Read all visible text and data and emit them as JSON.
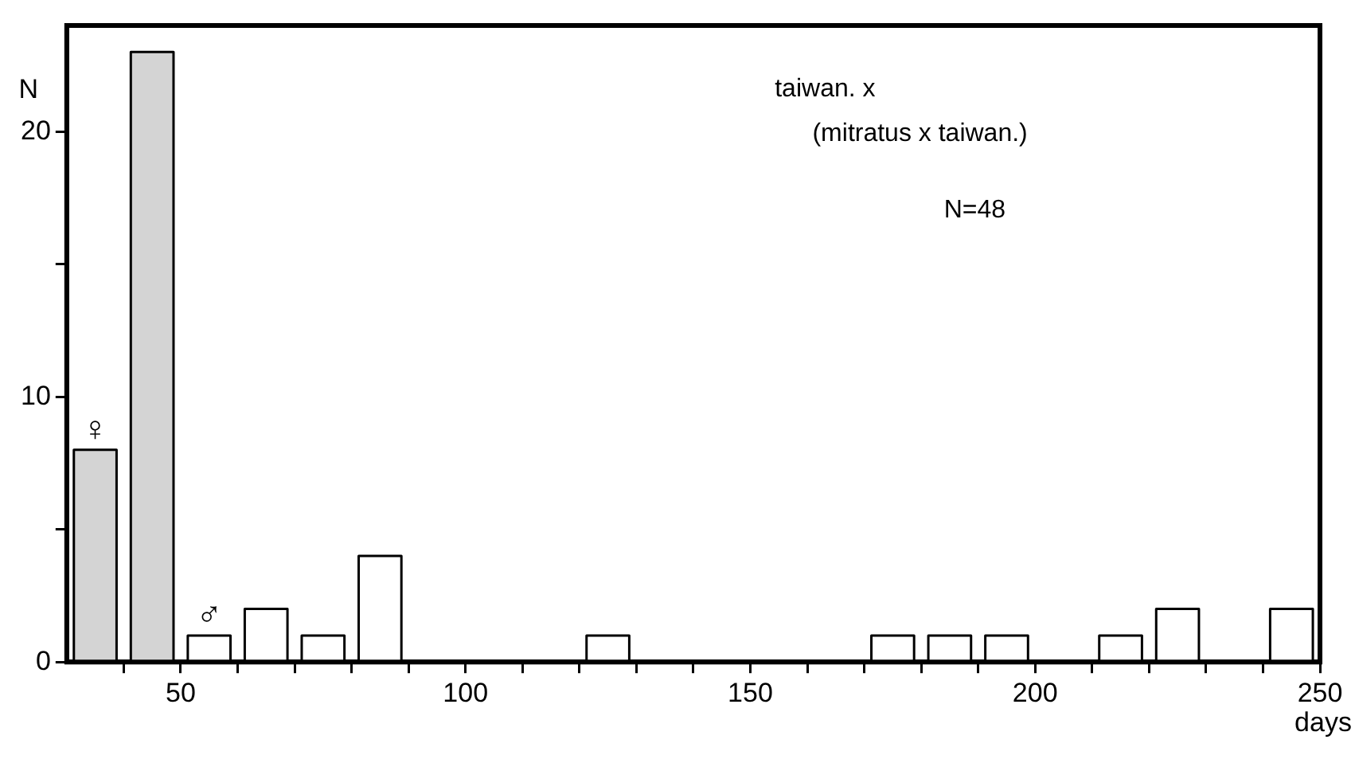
{
  "chart_data": {
    "type": "histogram",
    "xlabel": "days",
    "ylabel": "N",
    "bins": [
      30,
      40,
      50,
      60,
      70,
      80,
      90,
      100,
      110,
      120,
      130,
      140,
      150,
      160,
      170,
      180,
      190,
      200,
      210,
      220,
      230,
      240,
      250
    ],
    "values": [
      8,
      23,
      1,
      2,
      1,
      4,
      0,
      0,
      0,
      1,
      0,
      0,
      0,
      0,
      1,
      1,
      1,
      0,
      1,
      2,
      0,
      2
    ],
    "colors": [
      "#d4d4d4",
      "#d4d4d4",
      "#ffffff",
      "#ffffff",
      "#ffffff",
      "#ffffff",
      "#ffffff",
      "#ffffff",
      "#ffffff",
      "#ffffff",
      "#ffffff",
      "#ffffff",
      "#ffffff",
      "#ffffff",
      "#ffffff",
      "#ffffff",
      "#ffffff",
      "#ffffff",
      "#ffffff",
      "#ffffff",
      "#ffffff",
      "#ffffff"
    ],
    "xlim": [
      30,
      250
    ],
    "xticks": [
      {
        "value": 40,
        "label": null
      },
      50,
      {
        "value": 60,
        "label": null
      },
      {
        "value": 70,
        "label": null
      },
      {
        "value": 80,
        "label": null
      },
      {
        "value": 90,
        "label": null
      },
      100,
      {
        "value": 110,
        "label": null
      },
      {
        "value": 120,
        "label": null
      },
      {
        "value": 130,
        "label": null
      },
      {
        "value": 140,
        "label": null
      },
      150,
      {
        "value": 160,
        "label": null
      },
      {
        "value": 170,
        "label": null
      },
      {
        "value": 180,
        "label": null
      },
      {
        "value": 190,
        "label": null
      },
      200,
      {
        "value": 210,
        "label": null
      },
      {
        "value": 220,
        "label": null
      },
      {
        "value": 230,
        "label": null
      },
      {
        "value": 240,
        "label": null
      },
      250
    ],
    "ylim": [
      0,
      24
    ],
    "yticks": [
      0,
      {
        "value": 5,
        "label": null
      },
      10,
      {
        "value": 15,
        "label": null
      },
      20
    ],
    "annotations": [
      "taiwan. x",
      "(mitratus x taiwan.)",
      "N=48",
      {
        "text": "♀",
        "x": 35,
        "y": 8
      },
      {
        "text": "♂",
        "x": 55,
        "y": 1
      }
    ]
  }
}
